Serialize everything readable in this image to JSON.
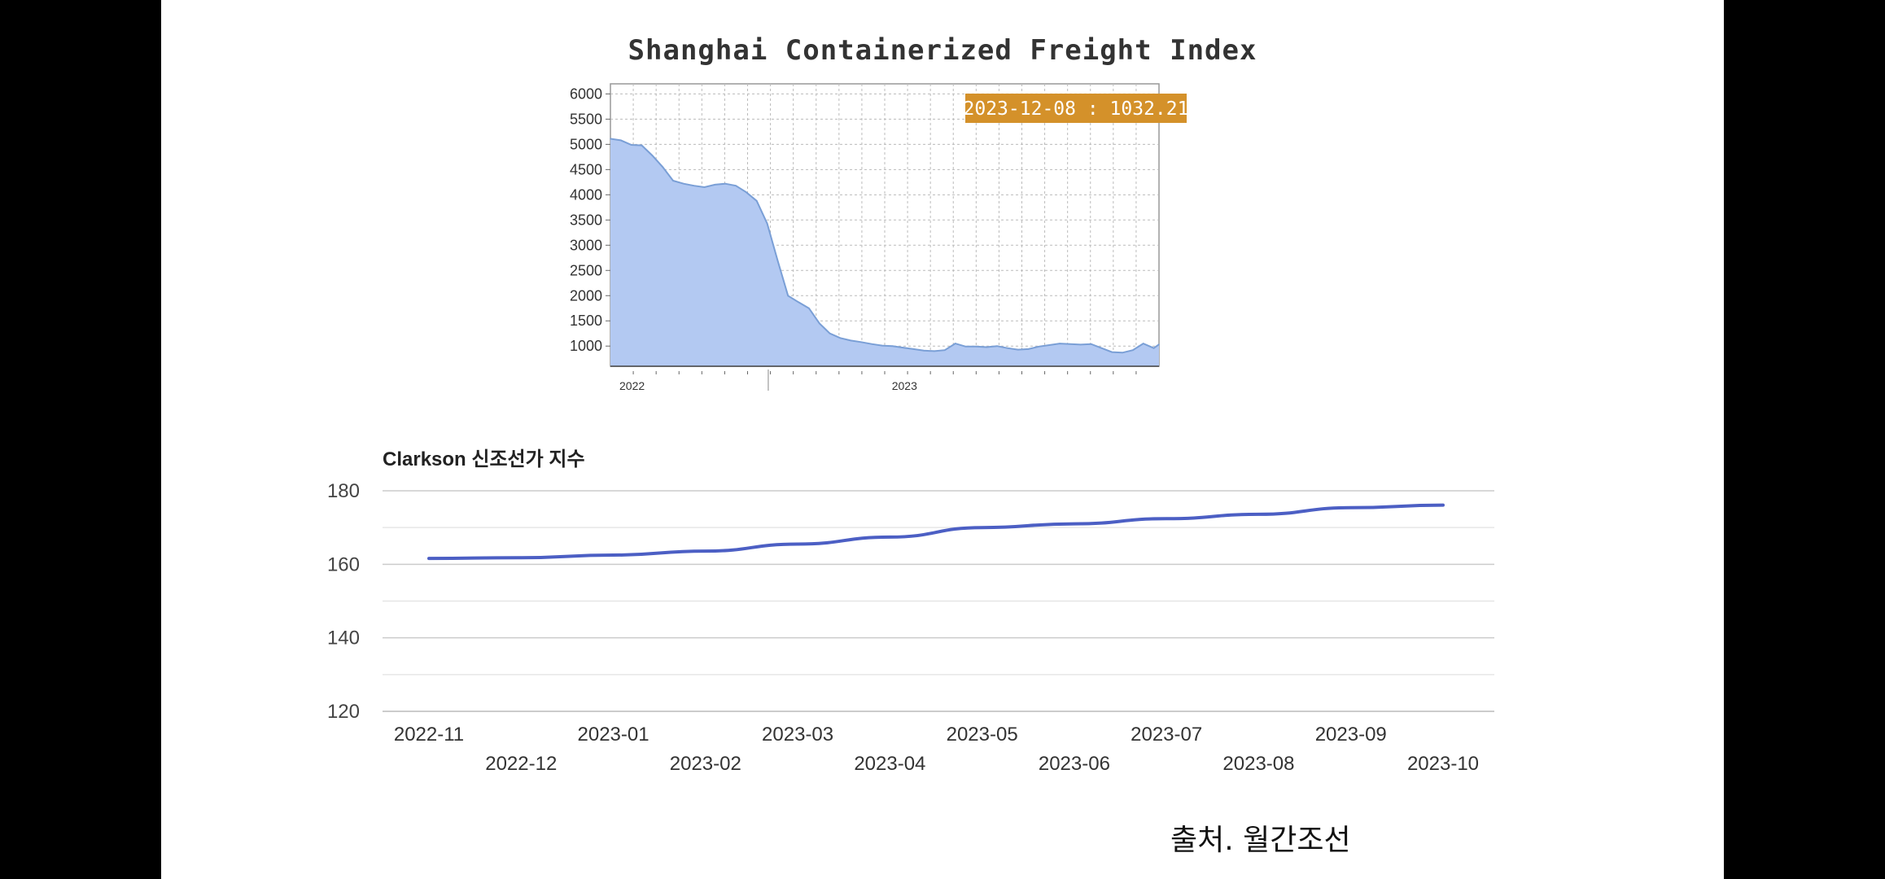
{
  "chart_data": [
    {
      "type": "area",
      "title": "Shanghai Containerized Freight Index",
      "x_ticks": [
        "2022",
        "2023"
      ],
      "y_ticks": [
        1000,
        1500,
        2000,
        2500,
        3000,
        3500,
        4000,
        4500,
        5000,
        5500,
        6000
      ],
      "ylim": [
        600,
        6200
      ],
      "grid": true,
      "color": "#b3c9f2",
      "line_color": "#7a9fd6",
      "tooltip": "2023-12-08 : 1032.21",
      "x": [
        "2021-12-03",
        "2021-12-17",
        "2021-12-31",
        "2022-01-14",
        "2022-01-28",
        "2022-02-11",
        "2022-02-25",
        "2022-03-11",
        "2022-03-25",
        "2022-04-08",
        "2022-04-22",
        "2022-05-06",
        "2022-05-20",
        "2022-06-03",
        "2022-06-17",
        "2022-07-01",
        "2022-07-15",
        "2022-07-29",
        "2022-08-12",
        "2022-08-26",
        "2022-09-09",
        "2022-09-23",
        "2022-10-07",
        "2022-10-21",
        "2022-11-04",
        "2022-11-18",
        "2022-12-02",
        "2022-12-16",
        "2022-12-30",
        "2023-01-13",
        "2023-01-27",
        "2023-02-10",
        "2023-02-24",
        "2023-03-10",
        "2023-03-24",
        "2023-04-07",
        "2023-04-21",
        "2023-05-05",
        "2023-05-19",
        "2023-06-02",
        "2023-06-16",
        "2023-06-30",
        "2023-07-14",
        "2023-07-28",
        "2023-08-11",
        "2023-08-25",
        "2023-09-08",
        "2023-09-22",
        "2023-10-06",
        "2023-10-20",
        "2023-11-03",
        "2023-11-17",
        "2023-12-01",
        "2023-12-08"
      ],
      "values": [
        5110,
        5080,
        4990,
        4980,
        4780,
        4550,
        4280,
        4220,
        4180,
        4150,
        4200,
        4220,
        4180,
        4050,
        3880,
        3430,
        2700,
        2000,
        1870,
        1750,
        1450,
        1250,
        1160,
        1110,
        1080,
        1040,
        1010,
        1000,
        970,
        940,
        910,
        900,
        920,
        1050,
        990,
        990,
        980,
        1000,
        960,
        930,
        940,
        990,
        1020,
        1050,
        1040,
        1030,
        1040,
        960,
        880,
        870,
        920,
        1050,
        960,
        1032
      ]
    },
    {
      "type": "line",
      "title": "Clarkson 신조선가 지수",
      "categories": [
        "2022-11",
        "2022-12",
        "2023-01",
        "2023-02",
        "2023-03",
        "2023-04",
        "2023-05",
        "2023-06",
        "2023-07",
        "2023-08",
        "2023-09",
        "2023-10"
      ],
      "values": [
        161.6,
        161.8,
        162.5,
        163.6,
        165.5,
        167.4,
        170.0,
        171.0,
        172.4,
        173.6,
        175.4,
        176.1
      ],
      "y_ticks": [
        120,
        140,
        160,
        180
      ],
      "ylim": [
        120,
        180
      ],
      "grid": true,
      "color": "#4c5fc4"
    }
  ],
  "source_note": "출처. 월간조선"
}
